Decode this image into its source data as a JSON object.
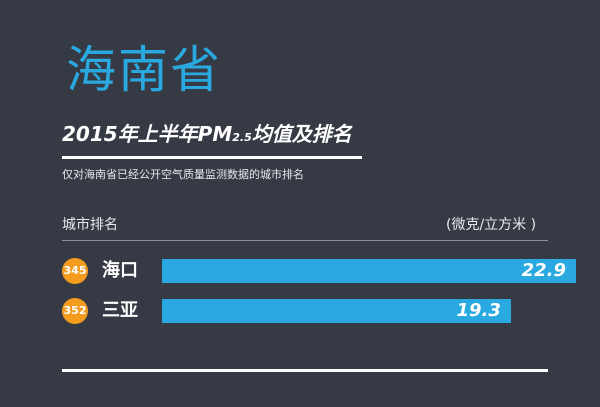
{
  "province": "海南省",
  "headline": {
    "main_a": "2015年上半年PM",
    "sub": "2.5",
    "main_b": "均值及排名"
  },
  "subtitle": "仅对海南省已经公开空气质量监测数据的城市排名",
  "columns": {
    "left": "城市排名",
    "right": "(微克/立方米 )"
  },
  "colors": {
    "accent": "#2aa9e0",
    "rank_badge": "#f39c1f",
    "background": "#363a44"
  },
  "chart_data": {
    "type": "bar",
    "orientation": "horizontal",
    "categories": [
      "海口",
      "三亚"
    ],
    "ranks": [
      "345",
      "352"
    ],
    "values": [
      22.9,
      19.3
    ],
    "value_labels": [
      "22.9",
      "19.3"
    ],
    "xlim": [
      0,
      22.9
    ],
    "grid": false,
    "legend": "none"
  }
}
